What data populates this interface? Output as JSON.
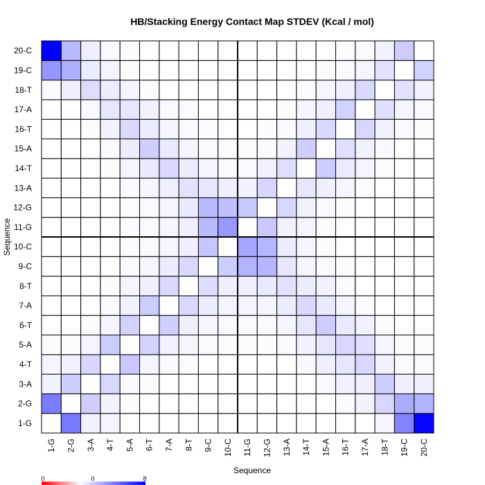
{
  "chart_data": {
    "type": "heatmap",
    "title": "HB/Stacking Energy Contact Map STDEV (Kcal / mol)",
    "xlabel": "Sequence",
    "ylabel": "Sequence",
    "labels": [
      "1-G",
      "2-G",
      "3-A",
      "4-T",
      "5-A",
      "6-T",
      "7-A",
      "8-T",
      "9-C",
      "10-C",
      "11-G",
      "12-G",
      "13-A",
      "14-T",
      "15-A",
      "16-T",
      "17-A",
      "18-T",
      "19-C",
      "20-C"
    ],
    "color_scale": {
      "min_label": "0",
      "mid_label": "0",
      "max_label": "8",
      "low_color": "#ff0000",
      "zero_color": "#ffffff",
      "high_color": "#0000ff",
      "max_value": 8
    },
    "grid_color": "#000000",
    "separator_after_index": 10,
    "values": [
      [
        0.0,
        4.2,
        0.4,
        0.3,
        0,
        0,
        0,
        0,
        0,
        0,
        0,
        0,
        0,
        0,
        0,
        0,
        0,
        0.3,
        3.9,
        7.8
      ],
      [
        4.1,
        0.0,
        1.5,
        0.4,
        0.1,
        0,
        0,
        0,
        0,
        0,
        0,
        0,
        0,
        0,
        0,
        0.2,
        0.4,
        1.3,
        2.6,
        2.4
      ],
      [
        0.4,
        1.5,
        0.0,
        1.3,
        0.2,
        0.1,
        0,
        0,
        0,
        0,
        0,
        0,
        0,
        0,
        0.2,
        0.4,
        0.5,
        1.5,
        0.5,
        0.5
      ],
      [
        0.3,
        0.4,
        1.3,
        0.0,
        1.7,
        0.3,
        0.2,
        0.1,
        0,
        0,
        0,
        0,
        0,
        0.2,
        0.5,
        0.8,
        1.2,
        0.4,
        0.2,
        0.2
      ],
      [
        0.1,
        0.1,
        0.3,
        1.6,
        0.0,
        1.4,
        0.4,
        0.3,
        0.2,
        0.1,
        0.1,
        0.1,
        0.2,
        0.4,
        0.8,
        1.3,
        1.0,
        0.3,
        0.1,
        0.1
      ],
      [
        0,
        0,
        0.1,
        0.3,
        1.4,
        0.0,
        1.5,
        0.5,
        0.3,
        0.2,
        0.2,
        0.2,
        0.3,
        0.8,
        1.6,
        0.7,
        0.4,
        0.1,
        0,
        0
      ],
      [
        0,
        0,
        0,
        0.2,
        0.4,
        1.6,
        0.0,
        1.2,
        0.6,
        0.3,
        0.3,
        0.3,
        0.6,
        1.2,
        0.7,
        0.3,
        0.1,
        0,
        0,
        0
      ],
      [
        0,
        0,
        0,
        0.1,
        0.3,
        0.5,
        1.2,
        0.0,
        1.1,
        0.5,
        0.5,
        0.7,
        0.9,
        0.6,
        0.4,
        0.2,
        0,
        0,
        0,
        0
      ],
      [
        0,
        0,
        0,
        0,
        0.2,
        0.3,
        0.6,
        1.2,
        0.0,
        1.6,
        2.4,
        2.3,
        0.8,
        0.3,
        0.2,
        0.1,
        0,
        0,
        0,
        0
      ],
      [
        0,
        0,
        0,
        0,
        0.1,
        0.2,
        0.3,
        0.5,
        1.8,
        0.0,
        2.8,
        2.3,
        0.6,
        0.3,
        0.1,
        0,
        0,
        0,
        0,
        0
      ],
      [
        0,
        0,
        0,
        0,
        0.1,
        0.2,
        0.3,
        0.5,
        2.2,
        3.2,
        0.0,
        1.7,
        0.4,
        0.3,
        0.1,
        0,
        0,
        0,
        0,
        0
      ],
      [
        0,
        0,
        0,
        0,
        0.1,
        0.2,
        0.3,
        0.7,
        2.2,
        2.0,
        1.7,
        0.0,
        1.3,
        0.4,
        0.2,
        0.1,
        0,
        0,
        0,
        0
      ],
      [
        0,
        0,
        0,
        0,
        0.2,
        0.3,
        0.5,
        0.9,
        0.8,
        0.5,
        0.4,
        1.3,
        0.0,
        0.8,
        0.5,
        0.3,
        0.1,
        0,
        0,
        0
      ],
      [
        0,
        0,
        0,
        0.1,
        0.3,
        0.7,
        1.2,
        0.6,
        0.3,
        0.2,
        0.2,
        0.4,
        1.0,
        0.0,
        1.6,
        0.6,
        0.3,
        0.1,
        0,
        0
      ],
      [
        0,
        0,
        0,
        0.2,
        0.6,
        1.5,
        0.7,
        0.3,
        0.2,
        0.1,
        0.1,
        0.2,
        0.4,
        1.5,
        0.0,
        1.0,
        0.4,
        0.2,
        0,
        0
      ],
      [
        0,
        0,
        0.1,
        0.4,
        1.2,
        0.6,
        0.3,
        0.2,
        0.1,
        0,
        0,
        0.1,
        0.2,
        0.5,
        1.2,
        0.0,
        1.3,
        0.4,
        0.2,
        0.1
      ],
      [
        0,
        0,
        0.2,
        0.8,
        0.8,
        0.4,
        0.2,
        0.1,
        0,
        0,
        0,
        0,
        0.1,
        0.3,
        0.5,
        1.4,
        0.0,
        1.0,
        0.3,
        0.2
      ],
      [
        0.2,
        0.5,
        1.1,
        0.6,
        0.3,
        0.1,
        0,
        0,
        0,
        0,
        0,
        0,
        0,
        0.1,
        0.3,
        0.5,
        1.2,
        0.0,
        0.9,
        0.4
      ],
      [
        3.3,
        2.5,
        0.6,
        0.3,
        0.1,
        0,
        0,
        0,
        0,
        0,
        0,
        0,
        0,
        0,
        0.1,
        0.2,
        0.3,
        0.9,
        0.0,
        1.4
      ],
      [
        8.0,
        2.2,
        0.5,
        0.2,
        0.1,
        0,
        0,
        0,
        0,
        0,
        0,
        0,
        0,
        0,
        0,
        0.1,
        0.2,
        0.4,
        1.6,
        0.0
      ]
    ]
  }
}
